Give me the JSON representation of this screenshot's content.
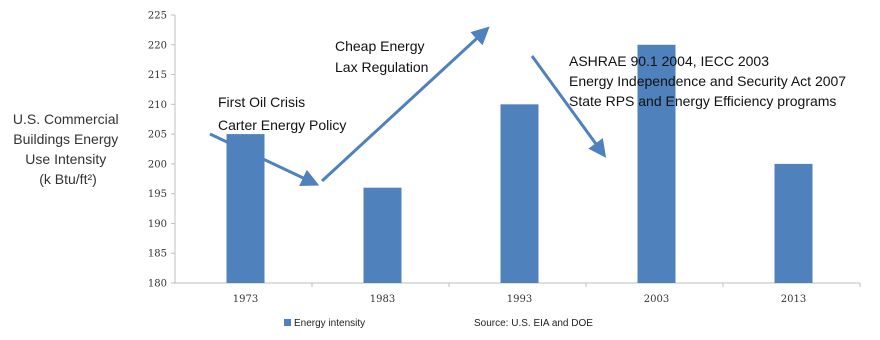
{
  "chart_data": {
    "type": "bar",
    "categories": [
      "1973",
      "1983",
      "1993",
      "2003",
      "2013"
    ],
    "series": [
      {
        "name": "Energy intensity",
        "values": [
          205,
          196,
          210,
          220,
          200
        ]
      }
    ],
    "ylim": [
      180,
      225
    ],
    "yticks": [
      180,
      185,
      190,
      195,
      200,
      205,
      210,
      215,
      220,
      225
    ],
    "ylabel": [
      "U.S. Commercial",
      "Buildings Energy",
      "Use Intensity",
      "(k Btu/ft²)"
    ],
    "bar_color": "#4f81bd",
    "arrow_color": "#4f81bd",
    "grid": false,
    "legend_position": "bottom-left",
    "annotations": [
      {
        "lines": [
          "First Oil Crisis",
          "Carter Energy Policy"
        ]
      },
      {
        "lines": [
          "Cheap Energy",
          "Lax Regulation"
        ]
      },
      {
        "lines": [
          "ASHRAE 90.1 2004, IECC 2003",
          "Energy Independence and Security Act 2007",
          "State RPS and Energy Efficiency programs"
        ]
      }
    ],
    "source": "Source: U.S. EIA and DOE"
  }
}
